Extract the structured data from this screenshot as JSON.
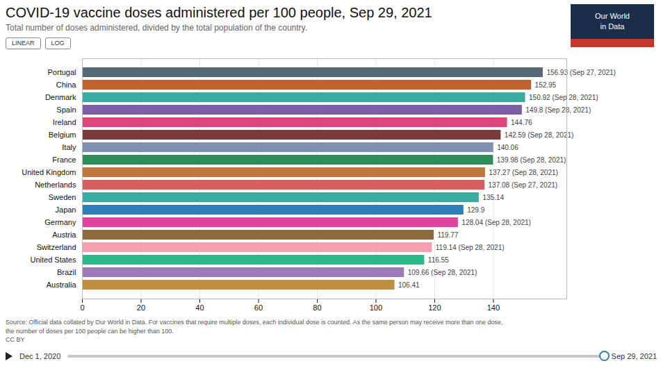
{
  "chart_data": {
    "type": "bar",
    "orientation": "horizontal",
    "title": "COVID-19 vaccine doses administered per 100 people, Sep 29, 2021",
    "subtitle": "Total number of doses administered, divided by the total population of the country.",
    "categories": [
      "Portugal",
      "China",
      "Denmark",
      "Spain",
      "Ireland",
      "Belgium",
      "Italy",
      "France",
      "United Kingdom",
      "Netherlands",
      "Sweden",
      "Japan",
      "Germany",
      "Austria",
      "Switzerland",
      "United States",
      "Brazil",
      "Australia"
    ],
    "values": [
      156.93,
      152.95,
      150.92,
      149.8,
      144.76,
      142.59,
      140.06,
      139.98,
      137.27,
      137.08,
      135.14,
      129.9,
      128.04,
      119.77,
      119.14,
      116.55,
      109.66,
      106.41
    ],
    "value_labels": [
      "156.93 (Sep 27, 2021)",
      "152.95",
      "150.92 (Sep 28, 2021)",
      "149.8 (Sep 28, 2021)",
      "144.76",
      "142.59 (Sep 28, 2021)",
      "140.06",
      "139.98 (Sep 28, 2021)",
      "137.27 (Sep 28, 2021)",
      "137.08 (Sep 27, 2021)",
      "135.14",
      "129.9",
      "128.04 (Sep 28, 2021)",
      "119.77",
      "119.14 (Sep 28, 2021)",
      "116.55",
      "109.66 (Sep 28, 2021)",
      "106.41"
    ],
    "colors": [
      "#576879",
      "#c0622e",
      "#3aab9f",
      "#7b5ea6",
      "#e0447d",
      "#7a3b3b",
      "#8090b0",
      "#2e8b5a",
      "#c07840",
      "#d95e5e",
      "#3aab9f",
      "#2e7db7",
      "#e044a0",
      "#8a6a3a",
      "#f4a0af",
      "#2eb78a",
      "#9b7ab7",
      "#bf8f3f"
    ],
    "data_labels": true,
    "xlim": [
      0,
      165
    ],
    "xticks": [
      0,
      20,
      40,
      60,
      80,
      100,
      120,
      140
    ],
    "grid": true,
    "annotations": [
      "LINEAR",
      "LOG",
      "Our World\nin Data",
      "Source: Official data collated by Our World in Data. For vaccines that require multiple doses, each individual dose is counted. As the same person may receive more than one dose,\nthe number of doses per 100 people can be higher than 100.\nCC BY",
      "Dec 1, 2020",
      "Sep 29, 2021"
    ]
  }
}
